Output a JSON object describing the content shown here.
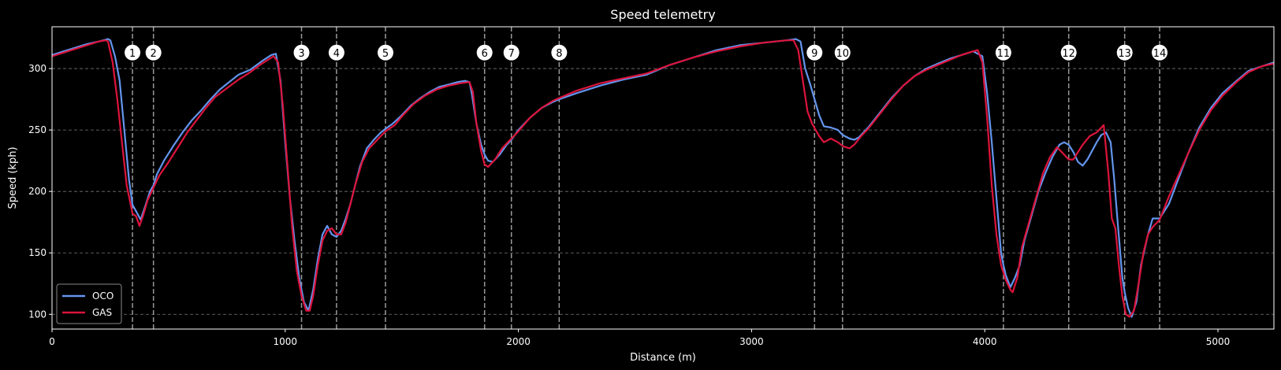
{
  "chart_data": {
    "type": "line",
    "title": "Speed telemetry",
    "xlabel": "Distance (m)",
    "ylabel": "Speed (kph)",
    "xlim": [
      0,
      5240
    ],
    "ylim": [
      88,
      334
    ],
    "xticks": [
      0,
      1000,
      2000,
      3000,
      4000,
      5000
    ],
    "yticks": [
      100,
      150,
      200,
      250,
      300
    ],
    "grid": "y dashed",
    "legend_position": "lower-left",
    "corner_marker_speed": 313,
    "corners": [
      {
        "label": "1",
        "x": 345
      },
      {
        "label": "2",
        "x": 435
      },
      {
        "label": "3",
        "x": 1070
      },
      {
        "label": "4",
        "x": 1220
      },
      {
        "label": "5",
        "x": 1430
      },
      {
        "label": "6",
        "x": 1855
      },
      {
        "label": "7",
        "x": 1970
      },
      {
        "label": "8",
        "x": 2175
      },
      {
        "label": "9",
        "x": 3270
      },
      {
        "label": "10",
        "x": 3390
      },
      {
        "label": "11",
        "x": 4080
      },
      {
        "label": "12",
        "x": 4360
      },
      {
        "label": "13",
        "x": 4600
      },
      {
        "label": "14",
        "x": 4750
      }
    ],
    "series": [
      {
        "name": "OCO",
        "color": "#6495ed",
        "points": [
          [
            0,
            311
          ],
          [
            50,
            314
          ],
          [
            100,
            317
          ],
          [
            150,
            320
          ],
          [
            200,
            322
          ],
          [
            240,
            324
          ],
          [
            250,
            323
          ],
          [
            270,
            310
          ],
          [
            290,
            290
          ],
          [
            310,
            250
          ],
          [
            330,
            210
          ],
          [
            345,
            189
          ],
          [
            360,
            184
          ],
          [
            380,
            177
          ],
          [
            400,
            188
          ],
          [
            420,
            200
          ],
          [
            435,
            205
          ],
          [
            450,
            214
          ],
          [
            480,
            225
          ],
          [
            520,
            237
          ],
          [
            560,
            248
          ],
          [
            600,
            258
          ],
          [
            640,
            266
          ],
          [
            680,
            275
          ],
          [
            720,
            283
          ],
          [
            760,
            289
          ],
          [
            800,
            295
          ],
          [
            850,
            299
          ],
          [
            900,
            306
          ],
          [
            940,
            311
          ],
          [
            960,
            312
          ],
          [
            980,
            290
          ],
          [
            1000,
            240
          ],
          [
            1020,
            195
          ],
          [
            1040,
            160
          ],
          [
            1060,
            130
          ],
          [
            1080,
            110
          ],
          [
            1100,
            103
          ],
          [
            1120,
            120
          ],
          [
            1140,
            145
          ],
          [
            1160,
            165
          ],
          [
            1180,
            172
          ],
          [
            1200,
            165
          ],
          [
            1220,
            163
          ],
          [
            1240,
            168
          ],
          [
            1260,
            178
          ],
          [
            1280,
            190
          ],
          [
            1300,
            205
          ],
          [
            1320,
            220
          ],
          [
            1350,
            235
          ],
          [
            1380,
            242
          ],
          [
            1410,
            248
          ],
          [
            1430,
            251
          ],
          [
            1460,
            255
          ],
          [
            1500,
            262
          ],
          [
            1540,
            270
          ],
          [
            1580,
            276
          ],
          [
            1620,
            281
          ],
          [
            1660,
            285
          ],
          [
            1700,
            287
          ],
          [
            1740,
            289
          ],
          [
            1770,
            290
          ],
          [
            1790,
            289
          ],
          [
            1800,
            280
          ],
          [
            1820,
            255
          ],
          [
            1840,
            238
          ],
          [
            1855,
            230
          ],
          [
            1870,
            225
          ],
          [
            1890,
            224
          ],
          [
            1920,
            230
          ],
          [
            1950,
            238
          ],
          [
            1970,
            242
          ],
          [
            2000,
            250
          ],
          [
            2050,
            260
          ],
          [
            2100,
            268
          ],
          [
            2150,
            273
          ],
          [
            2175,
            275
          ],
          [
            2250,
            280
          ],
          [
            2350,
            286
          ],
          [
            2450,
            291
          ],
          [
            2550,
            295
          ],
          [
            2650,
            303
          ],
          [
            2750,
            309
          ],
          [
            2850,
            315
          ],
          [
            2950,
            319
          ],
          [
            3050,
            321
          ],
          [
            3150,
            323
          ],
          [
            3190,
            324
          ],
          [
            3210,
            322
          ],
          [
            3230,
            300
          ],
          [
            3250,
            288
          ],
          [
            3270,
            275
          ],
          [
            3290,
            262
          ],
          [
            3310,
            253
          ],
          [
            3340,
            252
          ],
          [
            3370,
            250
          ],
          [
            3390,
            246
          ],
          [
            3420,
            243
          ],
          [
            3440,
            242
          ],
          [
            3460,
            244
          ],
          [
            3500,
            252
          ],
          [
            3550,
            264
          ],
          [
            3600,
            276
          ],
          [
            3650,
            286
          ],
          [
            3700,
            294
          ],
          [
            3750,
            300
          ],
          [
            3800,
            304
          ],
          [
            3850,
            308
          ],
          [
            3900,
            311
          ],
          [
            3950,
            314
          ],
          [
            3970,
            312
          ],
          [
            3990,
            310
          ],
          [
            4010,
            280
          ],
          [
            4030,
            240
          ],
          [
            4050,
            195
          ],
          [
            4070,
            150
          ],
          [
            4080,
            140
          ],
          [
            4090,
            132
          ],
          [
            4110,
            122
          ],
          [
            4130,
            130
          ],
          [
            4150,
            140
          ],
          [
            4170,
            160
          ],
          [
            4200,
            180
          ],
          [
            4230,
            200
          ],
          [
            4260,
            215
          ],
          [
            4290,
            228
          ],
          [
            4320,
            238
          ],
          [
            4340,
            240
          ],
          [
            4360,
            238
          ],
          [
            4380,
            232
          ],
          [
            4400,
            224
          ],
          [
            4420,
            221
          ],
          [
            4440,
            226
          ],
          [
            4460,
            233
          ],
          [
            4480,
            240
          ],
          [
            4500,
            246
          ],
          [
            4520,
            248
          ],
          [
            4540,
            240
          ],
          [
            4555,
            210
          ],
          [
            4570,
            175
          ],
          [
            4590,
            130
          ],
          [
            4600,
            118
          ],
          [
            4615,
            105
          ],
          [
            4630,
            98
          ],
          [
            4650,
            110
          ],
          [
            4670,
            140
          ],
          [
            4700,
            165
          ],
          [
            4720,
            178
          ],
          [
            4750,
            178
          ],
          [
            4790,
            190
          ],
          [
            4830,
            210
          ],
          [
            4870,
            230
          ],
          [
            4920,
            252
          ],
          [
            4970,
            268
          ],
          [
            5020,
            280
          ],
          [
            5080,
            290
          ],
          [
            5130,
            298
          ],
          [
            5190,
            302
          ],
          [
            5240,
            305
          ]
        ]
      },
      {
        "name": "GAS",
        "color": "#dc143c",
        "points": [
          [
            0,
            310
          ],
          [
            50,
            313
          ],
          [
            100,
            316
          ],
          [
            150,
            319
          ],
          [
            200,
            322
          ],
          [
            230,
            323
          ],
          [
            240,
            322
          ],
          [
            260,
            305
          ],
          [
            280,
            275
          ],
          [
            300,
            240
          ],
          [
            320,
            205
          ],
          [
            345,
            182
          ],
          [
            360,
            180
          ],
          [
            375,
            172
          ],
          [
            390,
            180
          ],
          [
            410,
            193
          ],
          [
            435,
            203
          ],
          [
            460,
            213
          ],
          [
            500,
            224
          ],
          [
            540,
            236
          ],
          [
            580,
            248
          ],
          [
            620,
            258
          ],
          [
            660,
            268
          ],
          [
            700,
            277
          ],
          [
            750,
            284
          ],
          [
            800,
            291
          ],
          [
            850,
            297
          ],
          [
            900,
            304
          ],
          [
            950,
            310
          ],
          [
            970,
            305
          ],
          [
            990,
            270
          ],
          [
            1010,
            220
          ],
          [
            1030,
            170
          ],
          [
            1050,
            135
          ],
          [
            1070,
            115
          ],
          [
            1090,
            103
          ],
          [
            1105,
            103
          ],
          [
            1120,
            115
          ],
          [
            1140,
            140
          ],
          [
            1160,
            160
          ],
          [
            1180,
            168
          ],
          [
            1200,
            170
          ],
          [
            1220,
            165
          ],
          [
            1240,
            165
          ],
          [
            1260,
            175
          ],
          [
            1280,
            190
          ],
          [
            1300,
            205
          ],
          [
            1330,
            224
          ],
          [
            1360,
            235
          ],
          [
            1400,
            243
          ],
          [
            1430,
            249
          ],
          [
            1470,
            254
          ],
          [
            1500,
            261
          ],
          [
            1550,
            271
          ],
          [
            1600,
            278
          ],
          [
            1650,
            283
          ],
          [
            1700,
            286
          ],
          [
            1750,
            288
          ],
          [
            1790,
            289
          ],
          [
            1805,
            281
          ],
          [
            1820,
            255
          ],
          [
            1840,
            233
          ],
          [
            1855,
            222
          ],
          [
            1870,
            220
          ],
          [
            1900,
            226
          ],
          [
            1930,
            235
          ],
          [
            1970,
            243
          ],
          [
            2000,
            249
          ],
          [
            2050,
            260
          ],
          [
            2100,
            268
          ],
          [
            2150,
            274
          ],
          [
            2175,
            276
          ],
          [
            2250,
            282
          ],
          [
            2350,
            288
          ],
          [
            2450,
            292
          ],
          [
            2550,
            296
          ],
          [
            2650,
            303
          ],
          [
            2750,
            309
          ],
          [
            2850,
            314
          ],
          [
            2950,
            318
          ],
          [
            3050,
            321
          ],
          [
            3150,
            323
          ],
          [
            3180,
            323
          ],
          [
            3200,
            315
          ],
          [
            3220,
            290
          ],
          [
            3240,
            265
          ],
          [
            3260,
            255
          ],
          [
            3290,
            245
          ],
          [
            3310,
            240
          ],
          [
            3340,
            243
          ],
          [
            3370,
            240
          ],
          [
            3390,
            237
          ],
          [
            3420,
            235
          ],
          [
            3440,
            238
          ],
          [
            3470,
            245
          ],
          [
            3500,
            251
          ],
          [
            3550,
            263
          ],
          [
            3600,
            275
          ],
          [
            3650,
            286
          ],
          [
            3700,
            294
          ],
          [
            3750,
            299
          ],
          [
            3800,
            303
          ],
          [
            3850,
            307
          ],
          [
            3900,
            311
          ],
          [
            3950,
            314
          ],
          [
            3970,
            315
          ],
          [
            3990,
            305
          ],
          [
            4010,
            260
          ],
          [
            4030,
            205
          ],
          [
            4050,
            165
          ],
          [
            4070,
            140
          ],
          [
            4090,
            128
          ],
          [
            4110,
            120
          ],
          [
            4120,
            118
          ],
          [
            4140,
            130
          ],
          [
            4160,
            155
          ],
          [
            4190,
            175
          ],
          [
            4220,
            195
          ],
          [
            4250,
            215
          ],
          [
            4280,
            228
          ],
          [
            4310,
            236
          ],
          [
            4340,
            230
          ],
          [
            4360,
            226
          ],
          [
            4380,
            226
          ],
          [
            4400,
            232
          ],
          [
            4420,
            238
          ],
          [
            4450,
            245
          ],
          [
            4480,
            248
          ],
          [
            4500,
            252
          ],
          [
            4510,
            254
          ],
          [
            4530,
            215
          ],
          [
            4545,
            178
          ],
          [
            4560,
            170
          ],
          [
            4575,
            140
          ],
          [
            4590,
            115
          ],
          [
            4605,
            100
          ],
          [
            4620,
            98
          ],
          [
            4640,
            103
          ],
          [
            4660,
            125
          ],
          [
            4680,
            150
          ],
          [
            4700,
            165
          ],
          [
            4720,
            171
          ],
          [
            4750,
            177
          ],
          [
            4790,
            196
          ],
          [
            4830,
            213
          ],
          [
            4870,
            230
          ],
          [
            4920,
            250
          ],
          [
            4970,
            266
          ],
          [
            5020,
            278
          ],
          [
            5080,
            289
          ],
          [
            5130,
            297
          ],
          [
            5190,
            302
          ],
          [
            5240,
            304
          ]
        ]
      }
    ]
  }
}
